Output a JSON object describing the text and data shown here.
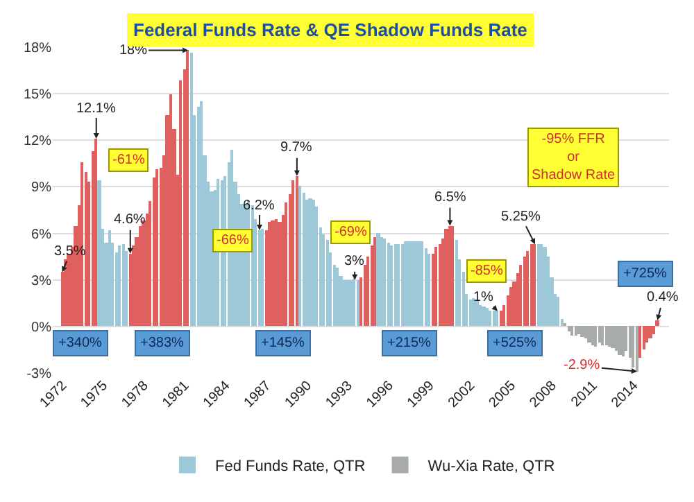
{
  "chart_data": {
    "type": "bar",
    "title": "Federal Funds Rate & QE Shadow Funds Rate",
    "xlim": [
      1971.3,
      2016.6
    ],
    "xticks": [
      1972,
      1975,
      1978,
      1981,
      1984,
      1987,
      1990,
      1993,
      1996,
      1999,
      2002,
      2005,
      2008,
      2011,
      2014
    ],
    "ylim": [
      -3,
      18
    ],
    "yticks": [
      {
        "value": -3,
        "label": "-3%"
      },
      {
        "value": 0,
        "label": "0%"
      },
      {
        "value": 3,
        "label": "3%"
      },
      {
        "value": 6,
        "label": "6%"
      },
      {
        "value": 9,
        "label": "9%"
      },
      {
        "value": 12,
        "label": "12%"
      },
      {
        "value": 15,
        "label": "15%"
      },
      {
        "value": 18,
        "label": "18%"
      }
    ],
    "grid": "y",
    "legend": "bottom",
    "series": [
      {
        "name": "Fed Funds Rate, QTR",
        "color": "#9cc8d8",
        "x": [
          1972,
          1972.25,
          1972.5,
          1972.75,
          1973,
          1973.25,
          1973.5,
          1973.75,
          1974,
          1974.25,
          1974.5,
          1974.75,
          1975,
          1975.25,
          1975.5,
          1975.75,
          1976,
          1976.25,
          1976.5,
          1976.75,
          1977,
          1977.25,
          1977.5,
          1977.75,
          1978,
          1978.25,
          1978.5,
          1978.75,
          1979,
          1979.25,
          1979.5,
          1979.75,
          1980,
          1980.25,
          1980.5,
          1980.75,
          1981,
          1981.25,
          1981.5,
          1981.75,
          1982,
          1982.25,
          1982.5,
          1982.75,
          1983,
          1983.25,
          1983.5,
          1983.75,
          1984,
          1984.25,
          1984.5,
          1984.75,
          1985,
          1985.25,
          1985.5,
          1985.75,
          1986,
          1986.25,
          1986.5,
          1986.75,
          1987,
          1987.25,
          1987.5,
          1987.75,
          1988,
          1988.25,
          1988.5,
          1988.75,
          1989,
          1989.25,
          1989.5,
          1989.75,
          1990,
          1990.25,
          1990.5,
          1990.75,
          1991,
          1991.25,
          1991.5,
          1991.75,
          1992,
          1992.25,
          1992.5,
          1992.75,
          1993,
          1993.25,
          1993.5,
          1993.75,
          1994,
          1994.25,
          1994.5,
          1994.75,
          1995,
          1995.25,
          1995.5,
          1995.75,
          1996,
          1996.25,
          1996.5,
          1996.75,
          1997,
          1997.25,
          1997.5,
          1997.75,
          1998,
          1998.25,
          1998.5,
          1998.75,
          1999,
          1999.25,
          1999.5,
          1999.75,
          2000,
          2000.25,
          2000.5,
          2000.75,
          2001,
          2001.25,
          2001.5,
          2001.75,
          2002,
          2002.25,
          2002.5,
          2002.75,
          2003,
          2003.25,
          2003.5,
          2003.75,
          2004,
          2004.25,
          2004.5,
          2004.75,
          2005,
          2005.25,
          2005.5,
          2005.75,
          2006,
          2006.25,
          2006.5,
          2006.75,
          2007,
          2007.25,
          2007.5,
          2007.75,
          2008,
          2008.25,
          2008.5,
          2008.75
        ],
        "values": [
          3.5,
          4.3,
          4.7,
          5.1,
          6.5,
          7.8,
          10.6,
          10.0,
          9.3,
          11.3,
          12.1,
          9.4,
          6.3,
          5.4,
          6.2,
          5.4,
          4.8,
          5.2,
          5.3,
          4.9,
          4.7,
          5.2,
          5.8,
          6.5,
          6.8,
          7.3,
          8.1,
          9.6,
          10.1,
          10.2,
          11.0,
          13.6,
          15.0,
          12.7,
          9.8,
          15.9,
          16.6,
          17.8,
          17.6,
          13.6,
          14.2,
          14.5,
          11.0,
          9.3,
          8.7,
          8.8,
          9.5,
          9.4,
          9.7,
          10.6,
          11.4,
          9.3,
          8.5,
          7.9,
          7.9,
          8.1,
          7.8,
          6.9,
          6.2,
          6.3,
          6.2,
          6.7,
          6.8,
          6.9,
          6.7,
          7.2,
          8.0,
          8.5,
          9.4,
          9.7,
          9.1,
          8.6,
          8.2,
          8.3,
          8.2,
          7.7,
          6.4,
          5.9,
          5.6,
          4.8,
          4.0,
          3.8,
          3.3,
          3.0,
          3.0,
          3.0,
          3.1,
          3.0,
          3.2,
          4.0,
          4.5,
          5.2,
          5.8,
          6.0,
          5.8,
          5.7,
          5.4,
          5.2,
          5.3,
          5.3,
          5.3,
          5.5,
          5.5,
          5.5,
          5.5,
          5.5,
          5.5,
          5.0,
          4.7,
          4.7,
          5.1,
          5.3,
          5.7,
          6.3,
          6.5,
          6.5,
          5.6,
          4.3,
          3.5,
          2.1,
          1.7,
          1.8,
          1.7,
          1.4,
          1.3,
          1.2,
          1.0,
          1.0,
          1.0,
          1.0,
          1.4,
          2.0,
          2.5,
          2.9,
          3.4,
          4.0,
          4.5,
          4.9,
          5.3,
          5.3,
          5.3,
          5.3,
          5.1,
          4.5,
          3.2,
          2.1,
          1.9,
          0.5
        ],
        "colors": [
          "#e06060",
          "#e06060",
          "#e06060",
          "#e06060",
          "#e06060",
          "#e06060",
          "#e06060",
          "#e06060",
          "#e06060",
          "#e06060",
          "#e06060",
          "#9cc8d8",
          "#9cc8d8",
          "#9cc8d8",
          "#9cc8d8",
          "#9cc8d8",
          "#9cc8d8",
          "#9cc8d8",
          "#9cc8d8",
          "#9cc8d8",
          "#e06060",
          "#e06060",
          "#e06060",
          "#e06060",
          "#e06060",
          "#e06060",
          "#e06060",
          "#e06060",
          "#e06060",
          "#e06060",
          "#e06060",
          "#e06060",
          "#e06060",
          "#e06060",
          "#e06060",
          "#e06060",
          "#e06060",
          "#e06060",
          "#9cc8d8",
          "#9cc8d8",
          "#9cc8d8",
          "#9cc8d8",
          "#9cc8d8",
          "#9cc8d8",
          "#9cc8d8",
          "#9cc8d8",
          "#9cc8d8",
          "#9cc8d8",
          "#9cc8d8",
          "#9cc8d8",
          "#9cc8d8",
          "#9cc8d8",
          "#9cc8d8",
          "#9cc8d8",
          "#9cc8d8",
          "#9cc8d8",
          "#9cc8d8",
          "#9cc8d8",
          "#9cc8d8",
          "#9cc8d8",
          "#e06060",
          "#e06060",
          "#e06060",
          "#e06060",
          "#e06060",
          "#e06060",
          "#e06060",
          "#e06060",
          "#e06060",
          "#e06060",
          "#9cc8d8",
          "#9cc8d8",
          "#9cc8d8",
          "#9cc8d8",
          "#9cc8d8",
          "#9cc8d8",
          "#9cc8d8",
          "#9cc8d8",
          "#9cc8d8",
          "#9cc8d8",
          "#9cc8d8",
          "#9cc8d8",
          "#9cc8d8",
          "#9cc8d8",
          "#9cc8d8",
          "#9cc8d8",
          "#9cc8d8",
          "#9cc8d8",
          "#e06060",
          "#e06060",
          "#e06060",
          "#e06060",
          "#e06060",
          "#9cc8d8",
          "#9cc8d8",
          "#9cc8d8",
          "#9cc8d8",
          "#9cc8d8",
          "#9cc8d8",
          "#9cc8d8",
          "#9cc8d8",
          "#9cc8d8",
          "#9cc8d8",
          "#9cc8d8",
          "#9cc8d8",
          "#9cc8d8",
          "#9cc8d8",
          "#9cc8d8",
          "#9cc8d8",
          "#e06060",
          "#e06060",
          "#e06060",
          "#e06060",
          "#e06060",
          "#e06060",
          "#e06060",
          "#9cc8d8",
          "#9cc8d8",
          "#9cc8d8",
          "#9cc8d8",
          "#9cc8d8",
          "#9cc8d8",
          "#9cc8d8",
          "#9cc8d8",
          "#9cc8d8",
          "#9cc8d8",
          "#9cc8d8",
          "#9cc8d8",
          "#9cc8d8",
          "#e06060",
          "#e06060",
          "#e06060",
          "#e06060",
          "#e06060",
          "#e06060",
          "#e06060",
          "#e06060",
          "#e06060",
          "#e06060",
          "#e06060",
          "#9cc8d8",
          "#9cc8d8",
          "#9cc8d8",
          "#9cc8d8",
          "#9cc8d8",
          "#9cc8d8",
          "#9cc8d8",
          "#9cc8d8"
        ]
      },
      {
        "name": "Wu-Xia Rate, QTR",
        "color": "#a8aca8",
        "x": [
          2009,
          2009.25,
          2009.5,
          2009.75,
          2010,
          2010.25,
          2010.5,
          2010.75,
          2011,
          2011.25,
          2011.5,
          2011.75,
          2012,
          2012.25,
          2012.5,
          2012.75,
          2013,
          2013.25,
          2013.5,
          2013.75,
          2014,
          2014.25,
          2014.5,
          2014.75,
          2015,
          2015.25,
          2015.5,
          2015.75
        ],
        "values": [
          0.2,
          -0.3,
          -0.6,
          -0.6,
          -0.5,
          -0.7,
          -0.8,
          -1.0,
          -1.2,
          -1.3,
          -1.0,
          -1.2,
          -1.2,
          -1.3,
          -1.4,
          -1.6,
          -1.8,
          -1.9,
          -1.6,
          -2.0,
          -2.6,
          -2.9,
          -2.0,
          -1.5,
          -1.0,
          -0.8,
          -0.5,
          0.4
        ],
        "colors": [
          "#a8aca8",
          "#a8aca8",
          "#a8aca8",
          "#a8aca8",
          "#a8aca8",
          "#a8aca8",
          "#a8aca8",
          "#a8aca8",
          "#a8aca8",
          "#a8aca8",
          "#a8aca8",
          "#a8aca8",
          "#a8aca8",
          "#a8aca8",
          "#a8aca8",
          "#a8aca8",
          "#a8aca8",
          "#a8aca8",
          "#a8aca8",
          "#a8aca8",
          "#a8aca8",
          "#a8aca8",
          "#e06060",
          "#e06060",
          "#e06060",
          "#e06060",
          "#e06060",
          "#e06060"
        ]
      }
    ],
    "annotations": [
      {
        "text": "12.1%",
        "x": 1974.5,
        "y": 12.1
      },
      {
        "text": "18%",
        "x": 1981.25,
        "y": 17.8
      },
      {
        "text": "9.7%",
        "x": 1989.25,
        "y": 9.7
      },
      {
        "text": "6.5%",
        "x": 2000.5,
        "y": 6.5
      },
      {
        "text": "5.25%",
        "x": 2006.75,
        "y": 5.3
      },
      {
        "text": "3.5%",
        "x": 1972,
        "y": 3.5
      },
      {
        "text": "4.6%",
        "x": 1977,
        "y": 4.7
      },
      {
        "text": "6.2%",
        "x": 1986.5,
        "y": 6.2
      },
      {
        "text": "3%",
        "x": 1993.5,
        "y": 3.0
      },
      {
        "text": "1%",
        "x": 2004,
        "y": 1.0
      },
      {
        "text": "0.4%",
        "x": 2015.75,
        "y": 0.4
      },
      {
        "text": "-2.9%",
        "x": 2014.25,
        "y": -2.9
      },
      {
        "text": "-61%",
        "x": 1976.9,
        "y": 10.7
      },
      {
        "text": "-66%",
        "x": 1984.5,
        "y": 5.5
      },
      {
        "text": "-69%",
        "x": 1993.2,
        "y": 6.1
      },
      {
        "text": "-85%",
        "x": 2003.2,
        "y": 3.6
      },
      "-95% FFR\nor\nShadow Rate",
      {
        "text": "+340%",
        "x": 1973.3,
        "y": -1.1
      },
      {
        "text": "+383%",
        "x": 1979.4,
        "y": -1.1
      },
      {
        "text": "+145%",
        "x": 1988.2,
        "y": -1.1
      },
      {
        "text": "+215%",
        "x": 1997.5,
        "y": -1.1
      },
      {
        "text": "+525%",
        "x": 2005.3,
        "y": -1.1
      },
      {
        "text": "+725%",
        "x": 2014.9,
        "y": 3.4
      }
    ]
  }
}
